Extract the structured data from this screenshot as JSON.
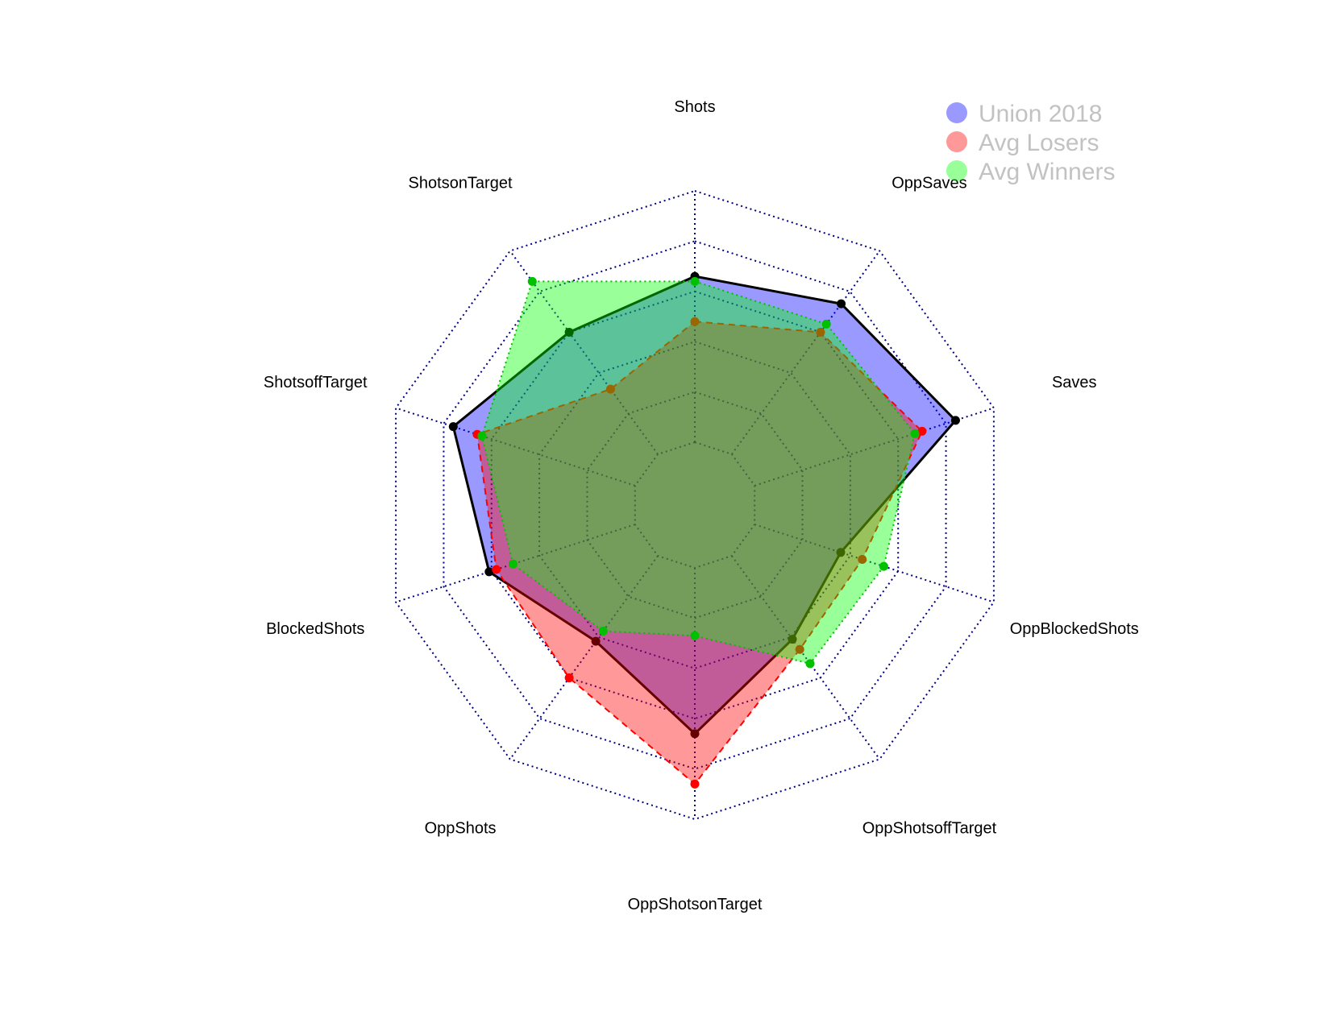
{
  "chart_data": {
    "type": "radar",
    "axes": [
      "Shots",
      "OppSaves",
      "Saves",
      "OppBlockedShots",
      "OppShotsoffTarget",
      "OppShotsonTarget",
      "OppShots",
      "BlockedShots",
      "ShotsoffTarget",
      "ShotsonTarget"
    ],
    "range": [
      0,
      1
    ],
    "grid_levels": 5,
    "grid": true,
    "legend_position": "top-right",
    "series": [
      {
        "name": "Union 2018",
        "values": [
          0.66,
          0.74,
          0.84,
          0.36,
          0.41,
          0.66,
          0.42,
          0.61,
          0.76,
          0.6
        ],
        "fill": "#0000ff",
        "fill_opacity": 0.4,
        "stroke": "#000000",
        "marker": "#000000",
        "line_style": "solid"
      },
      {
        "name": "Avg Losers",
        "values": [
          0.48,
          0.6,
          0.7,
          0.45,
          0.46,
          0.86,
          0.6,
          0.58,
          0.66,
          0.32
        ],
        "fill": "#ff0000",
        "fill_opacity": 0.4,
        "stroke": "#ff0000",
        "marker": "#ff0000",
        "line_style": "dashed"
      },
      {
        "name": "Avg Winners",
        "values": [
          0.64,
          0.64,
          0.67,
          0.54,
          0.53,
          0.27,
          0.37,
          0.51,
          0.64,
          0.85
        ],
        "fill": "#00ff00",
        "fill_opacity": 0.4,
        "stroke": "#00c000",
        "marker": "#00c000",
        "line_style": "dotted"
      }
    ]
  }
}
